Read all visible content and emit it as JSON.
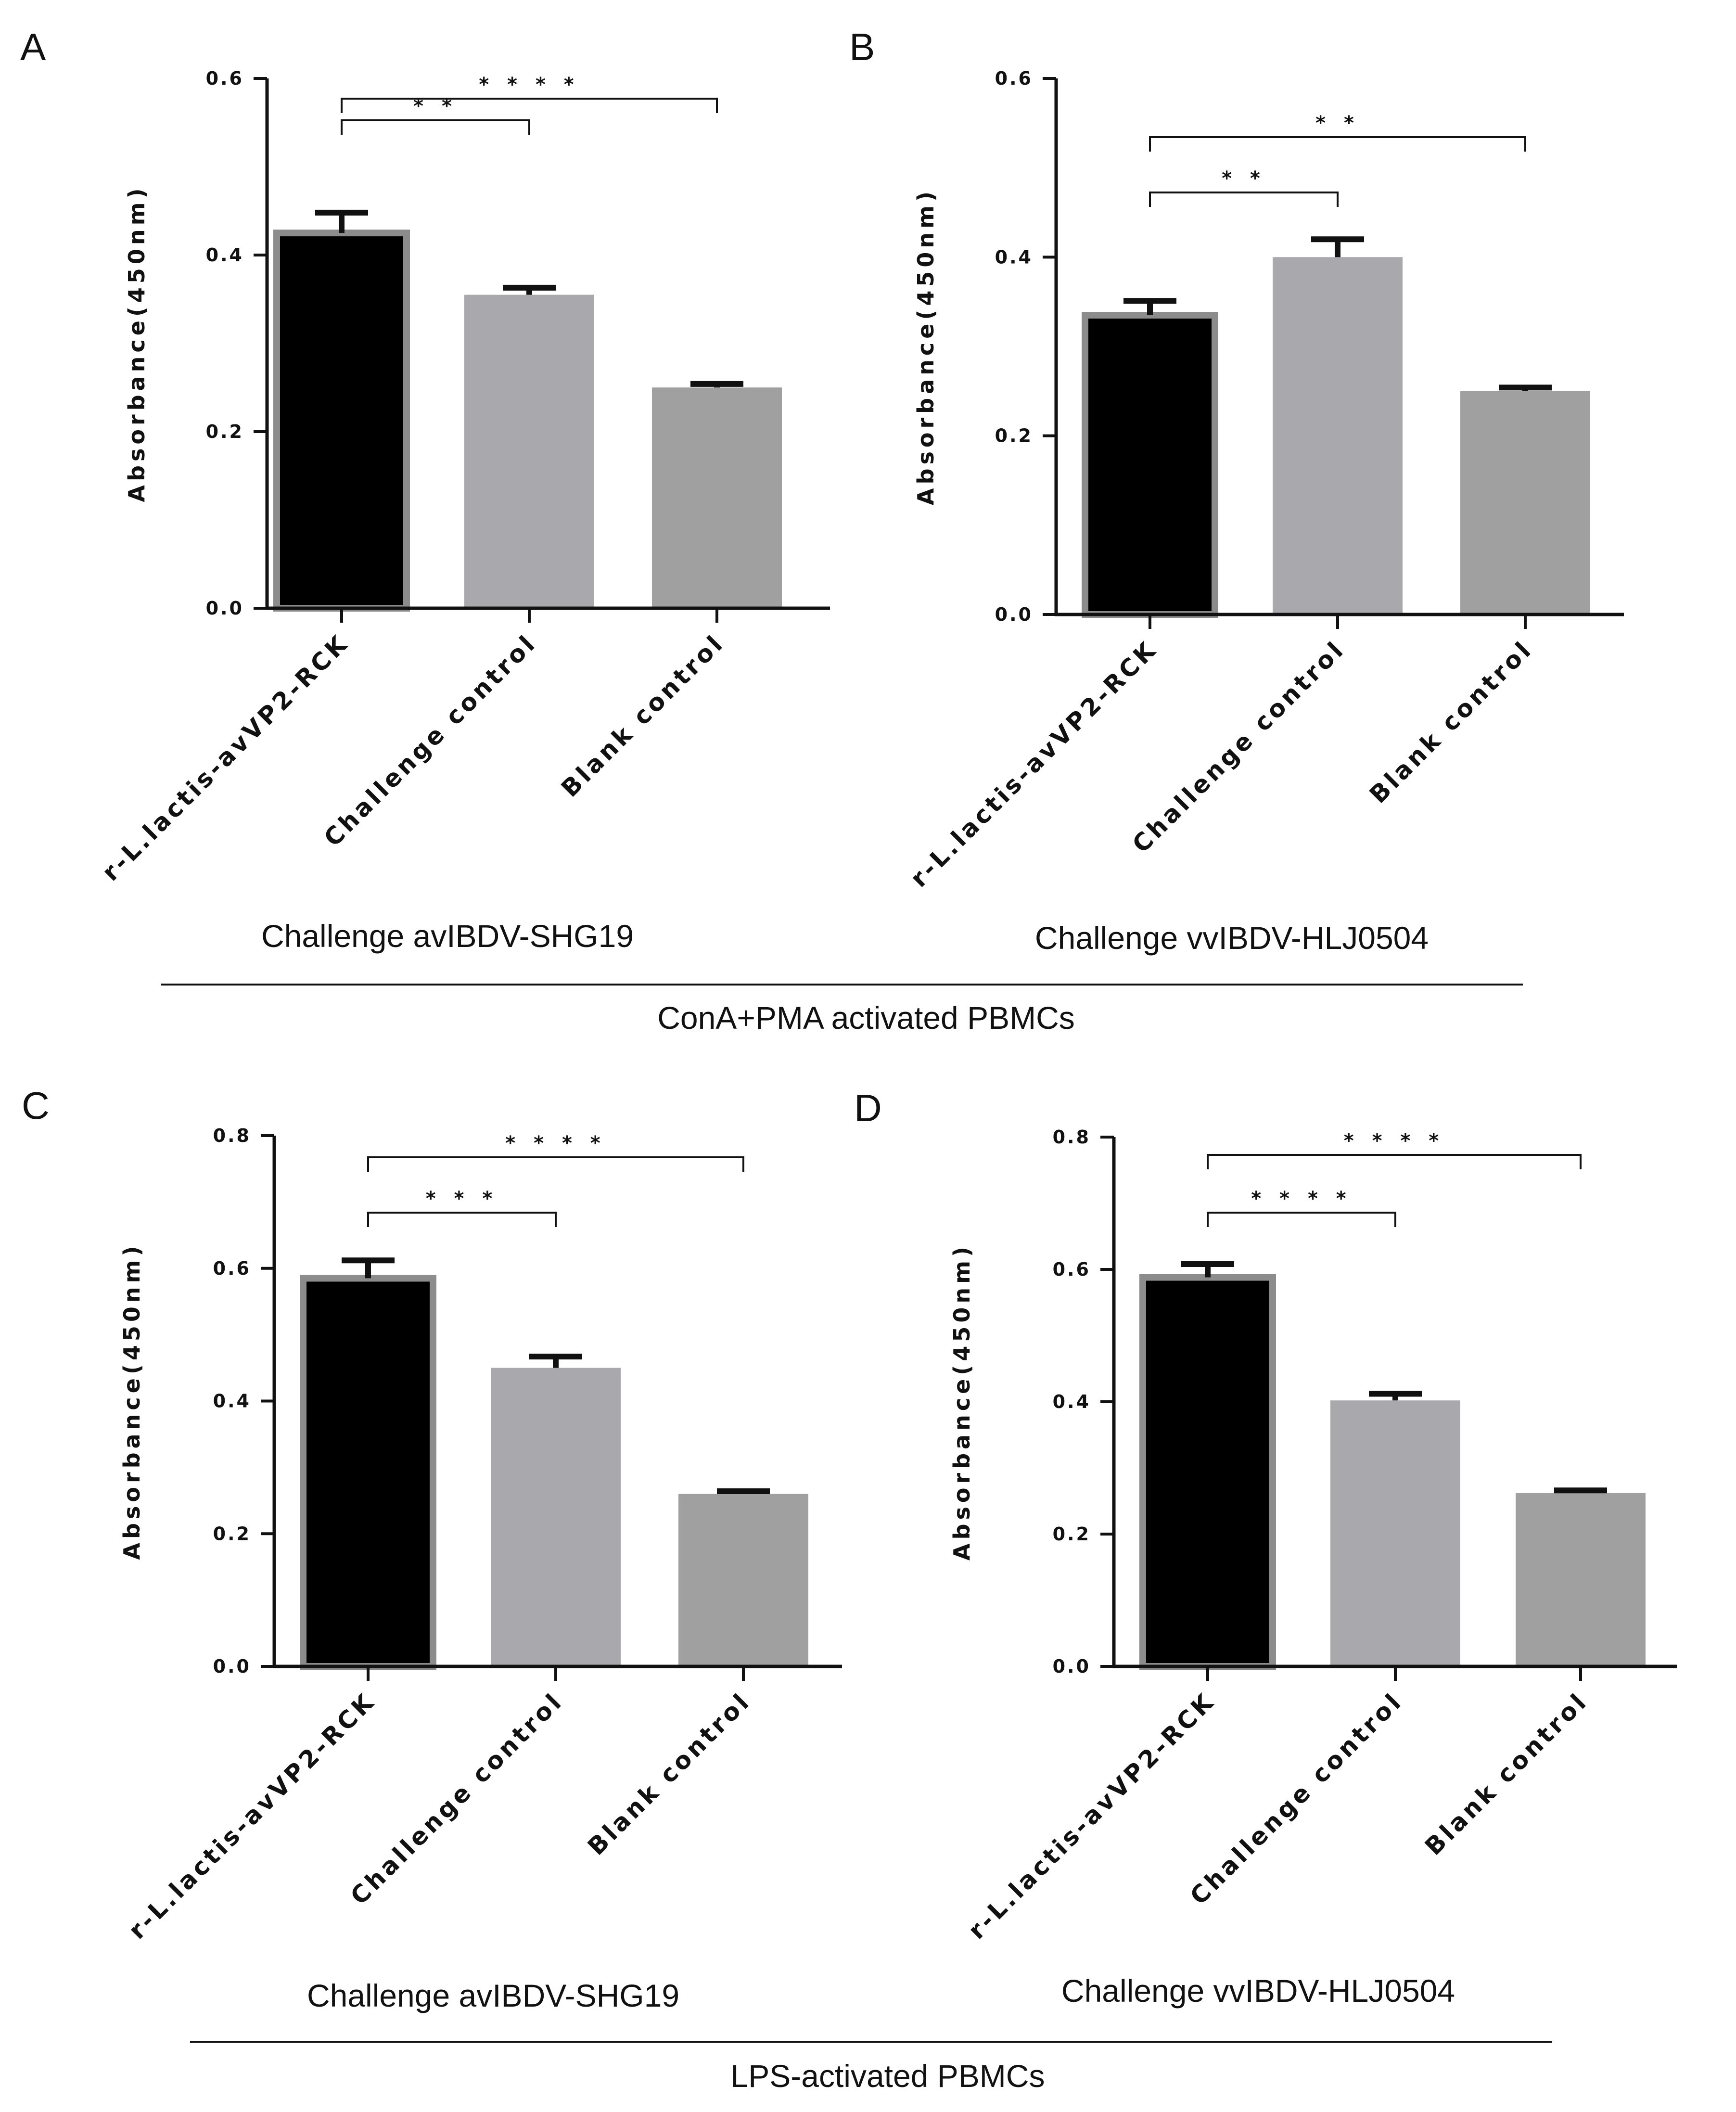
{
  "chart_data": [
    {
      "panel": "A",
      "type": "bar",
      "categories": [
        "r-L.lactis-avVP2-RCK",
        "Challenge control",
        "Blank control"
      ],
      "values": [
        0.425,
        0.355,
        0.25
      ],
      "errors": [
        0.023,
        0.008,
        0.004
      ],
      "bar_colors": [
        "#000000",
        "#a8a8ad",
        "#a0a0a0"
      ],
      "ylabel": "Absorbance(450nm)",
      "ylim": [
        0,
        0.6
      ],
      "yticks": [
        "0.0",
        "0.2",
        "0.4",
        "0.6"
      ],
      "subtitle": "Challenge avIBDV-SHG19",
      "significance": [
        {
          "from": 0,
          "to": 1,
          "label": "* *"
        },
        {
          "from": 0,
          "to": 2,
          "label": "* * * *"
        }
      ]
    },
    {
      "panel": "B",
      "type": "bar",
      "categories": [
        "r-L.lactis-avVP2-RCK",
        "Challenge control",
        "Blank control"
      ],
      "values": [
        0.335,
        0.4,
        0.25
      ],
      "errors": [
        0.016,
        0.02,
        0.004
      ],
      "bar_colors": [
        "#000000",
        "#a8a8ad",
        "#a0a0a0"
      ],
      "ylabel": "Absorbance(450nm)",
      "ylim": [
        0,
        0.6
      ],
      "yticks": [
        "0.0",
        "0.2",
        "0.4",
        "0.6"
      ],
      "subtitle": "Challenge vvIBDV-HLJ0504",
      "significance": [
        {
          "from": 0,
          "to": 1,
          "label": "* *"
        },
        {
          "from": 0,
          "to": 2,
          "label": "* *"
        }
      ]
    },
    {
      "panel": "C",
      "type": "bar",
      "categories": [
        "r-L.lactis-avVP2-RCK",
        "Challenge control",
        "Blank control"
      ],
      "values": [
        0.585,
        0.45,
        0.26
      ],
      "errors": [
        0.027,
        0.017,
        0.004
      ],
      "bar_colors": [
        "#000000",
        "#a8a8ad",
        "#a0a0a0"
      ],
      "ylabel": "Absorbance(450nm)",
      "ylim": [
        0,
        0.8
      ],
      "yticks": [
        "0.0",
        "0.2",
        "0.4",
        "0.6",
        "0.8"
      ],
      "subtitle": "Challenge avIBDV-SHG19",
      "significance": [
        {
          "from": 0,
          "to": 1,
          "label": "* * *"
        },
        {
          "from": 0,
          "to": 2,
          "label": "* * * *"
        }
      ]
    },
    {
      "panel": "D",
      "type": "bar",
      "categories": [
        "r-L.lactis-avVP2-RCK",
        "Challenge control",
        "Blank control"
      ],
      "values": [
        0.588,
        0.402,
        0.262
      ],
      "errors": [
        0.02,
        0.01,
        0.004
      ],
      "bar_colors": [
        "#000000",
        "#a8a8ad",
        "#a0a0a0"
      ],
      "ylabel": "Absorbance(450nm)",
      "ylim": [
        0,
        0.8
      ],
      "yticks": [
        "0.0",
        "0.2",
        "0.4",
        "0.6",
        "0.8"
      ],
      "subtitle": "Challenge vvIBDV-HLJ0504",
      "significance": [
        {
          "from": 0,
          "to": 1,
          "label": "* * * *"
        },
        {
          "from": 0,
          "to": 2,
          "label": "* * * *"
        }
      ]
    }
  ],
  "groups": [
    {
      "label": "ConA+PMA activated PBMCs"
    },
    {
      "label": "LPS-activated PBMCs"
    }
  ]
}
